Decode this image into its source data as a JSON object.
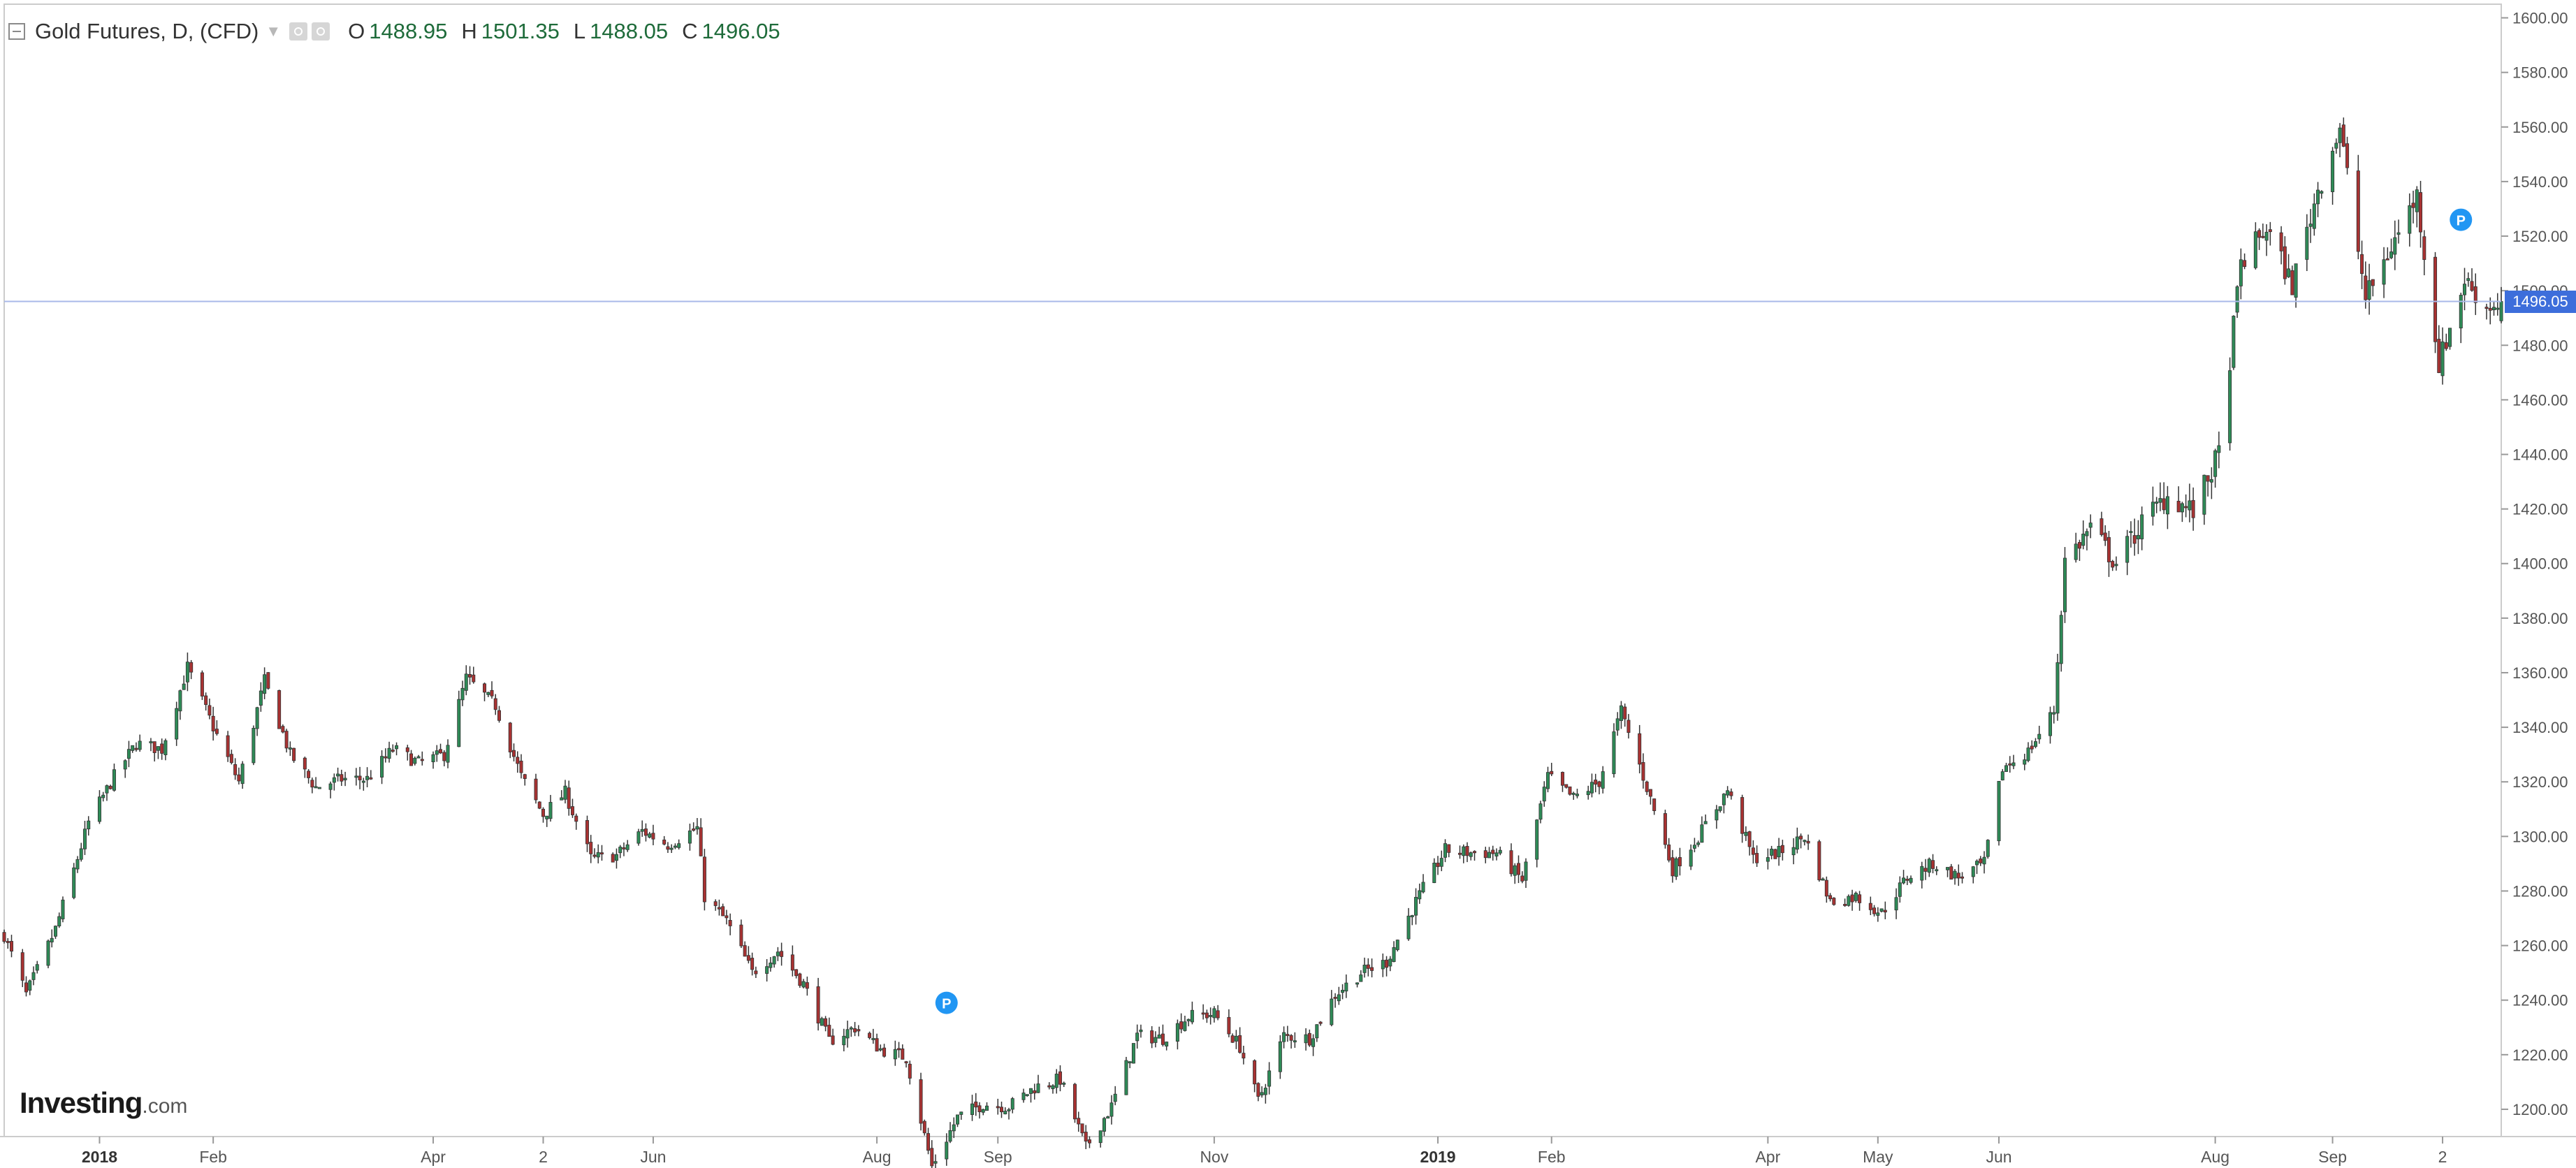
{
  "header": {
    "title": "Gold Futures, D, (CFD)",
    "ohlc": [
      {
        "key": "O",
        "value": "1488.95"
      },
      {
        "key": "H",
        "value": "1501.35"
      },
      {
        "key": "L",
        "value": "1488.05"
      },
      {
        "key": "C",
        "value": "1496.05"
      }
    ]
  },
  "branding": {
    "name": "Investing",
    "tld": ".com"
  },
  "colors": {
    "up": "#2e8b57",
    "down": "#a83232",
    "grid": "#ececec",
    "axis": "#cccccc",
    "label": "#555555",
    "current_price_line": "#a9b9e8",
    "current_price_tag": "#3d6edb",
    "marker": "#2196f3"
  },
  "chart_data": {
    "type": "candlestick",
    "instrument": "Gold Futures",
    "timeframe": "D",
    "x": {
      "type": "time",
      "range": [
        "2017-12-06",
        "2019-10-18"
      ],
      "tick_labels": [
        {
          "date": "2018-01-01",
          "label": "2018"
        },
        {
          "date": "2018-02-01",
          "label": "Feb"
        },
        {
          "date": "2018-04-02",
          "label": "Apr"
        },
        {
          "date": "2018-05-02",
          "label": "2"
        },
        {
          "date": "2018-06-01",
          "label": "Jun"
        },
        {
          "date": "2018-08-01",
          "label": "Aug"
        },
        {
          "date": "2018-09-03",
          "label": "Sep"
        },
        {
          "date": "2018-11-01",
          "label": "Nov"
        },
        {
          "date": "2019-01-01",
          "label": "2019"
        },
        {
          "date": "2019-02-01",
          "label": "Feb"
        },
        {
          "date": "2019-04-01",
          "label": "Apr"
        },
        {
          "date": "2019-05-01",
          "label": "May"
        },
        {
          "date": "2019-06-03",
          "label": "Jun"
        },
        {
          "date": "2019-08-01",
          "label": "Aug"
        },
        {
          "date": "2019-09-02",
          "label": "Sep"
        },
        {
          "date": "2019-10-02",
          "label": "2"
        }
      ]
    },
    "y": {
      "range": [
        1190,
        1605
      ],
      "ticks": [
        1200,
        1220,
        1240,
        1260,
        1280,
        1300,
        1320,
        1340,
        1360,
        1380,
        1400,
        1420,
        1440,
        1460,
        1480,
        1500,
        1520,
        1540,
        1560,
        1580,
        1600
      ],
      "tick_format": "0.00",
      "position": "right"
    },
    "grid": false,
    "close_path": [
      [
        "2017-12-06",
        1264
      ],
      [
        "2017-12-12",
        1242
      ],
      [
        "2017-12-20",
        1266
      ],
      [
        "2017-12-29",
        1305
      ],
      [
        "2018-01-05",
        1322
      ],
      [
        "2018-01-11",
        1334
      ],
      [
        "2018-01-18",
        1332
      ],
      [
        "2018-01-25",
        1362
      ],
      [
        "2018-02-02",
        1337
      ],
      [
        "2018-02-08",
        1320
      ],
      [
        "2018-02-15",
        1357
      ],
      [
        "2018-02-22",
        1330
      ],
      [
        "2018-03-01",
        1318
      ],
      [
        "2018-03-08",
        1321
      ],
      [
        "2018-03-15",
        1321
      ],
      [
        "2018-03-22",
        1332
      ],
      [
        "2018-03-29",
        1327
      ],
      [
        "2018-04-05",
        1330
      ],
      [
        "2018-04-11",
        1358
      ],
      [
        "2018-04-19",
        1348
      ],
      [
        "2018-04-26",
        1322
      ],
      [
        "2018-05-02",
        1308
      ],
      [
        "2018-05-08",
        1316
      ],
      [
        "2018-05-15",
        1292
      ],
      [
        "2018-05-22",
        1293
      ],
      [
        "2018-05-29",
        1302
      ],
      [
        "2018-06-05",
        1297
      ],
      [
        "2018-06-13",
        1303
      ],
      [
        "2018-06-15",
        1278
      ],
      [
        "2018-06-21",
        1269
      ],
      [
        "2018-06-28",
        1250
      ],
      [
        "2018-07-05",
        1258
      ],
      [
        "2018-07-12",
        1246
      ],
      [
        "2018-07-19",
        1225
      ],
      [
        "2018-07-26",
        1230
      ],
      [
        "2018-08-02",
        1222
      ],
      [
        "2018-08-09",
        1219
      ],
      [
        "2018-08-16",
        1179
      ],
      [
        "2018-08-23",
        1197
      ],
      [
        "2018-08-30",
        1202
      ],
      [
        "2018-09-06",
        1201
      ],
      [
        "2018-09-13",
        1208
      ],
      [
        "2018-09-20",
        1211
      ],
      [
        "2018-09-27",
        1186
      ],
      [
        "2018-10-04",
        1201
      ],
      [
        "2018-10-11",
        1227
      ],
      [
        "2018-10-18",
        1226
      ],
      [
        "2018-10-25",
        1234
      ],
      [
        "2018-11-01",
        1235
      ],
      [
        "2018-11-08",
        1223
      ],
      [
        "2018-11-13",
        1203
      ],
      [
        "2018-11-20",
        1227
      ],
      [
        "2018-11-27",
        1226
      ],
      [
        "2018-12-04",
        1242
      ],
      [
        "2018-12-11",
        1250
      ],
      [
        "2018-12-18",
        1254
      ],
      [
        "2018-12-26",
        1276
      ],
      [
        "2019-01-03",
        1295
      ],
      [
        "2019-01-10",
        1294
      ],
      [
        "2019-01-17",
        1294
      ],
      [
        "2019-01-24",
        1284
      ],
      [
        "2019-01-31",
        1322
      ],
      [
        "2019-02-07",
        1314
      ],
      [
        "2019-02-14",
        1320
      ],
      [
        "2019-02-20",
        1346
      ],
      [
        "2019-02-27",
        1318
      ],
      [
        "2019-03-06",
        1288
      ],
      [
        "2019-03-13",
        1300
      ],
      [
        "2019-03-21",
        1317
      ],
      [
        "2019-03-28",
        1292
      ],
      [
        "2019-04-04",
        1294
      ],
      [
        "2019-04-11",
        1300
      ],
      [
        "2019-04-18",
        1276
      ],
      [
        "2019-04-25",
        1278
      ],
      [
        "2019-05-02",
        1272
      ],
      [
        "2019-05-09",
        1285
      ],
      [
        "2019-05-16",
        1290
      ],
      [
        "2019-05-23",
        1285
      ],
      [
        "2019-05-30",
        1290
      ],
      [
        "2019-06-04",
        1325
      ],
      [
        "2019-06-11",
        1331
      ],
      [
        "2019-06-18",
        1346
      ],
      [
        "2019-06-21",
        1401
      ],
      [
        "2019-06-28",
        1413
      ],
      [
        "2019-07-05",
        1400
      ],
      [
        "2019-07-12",
        1415
      ],
      [
        "2019-07-19",
        1425
      ],
      [
        "2019-07-26",
        1419
      ],
      [
        "2019-08-02",
        1440
      ],
      [
        "2019-08-08",
        1510
      ],
      [
        "2019-08-15",
        1523
      ],
      [
        "2019-08-22",
        1502
      ],
      [
        "2019-08-29",
        1537
      ],
      [
        "2019-09-04",
        1560
      ],
      [
        "2019-09-11",
        1497
      ],
      [
        "2019-09-18",
        1516
      ],
      [
        "2019-09-25",
        1535
      ],
      [
        "2019-10-01",
        1473
      ],
      [
        "2019-10-08",
        1504
      ],
      [
        "2019-10-14",
        1494
      ],
      [
        "2019-10-18",
        1496
      ]
    ],
    "last_candle": {
      "date": "2019-10-18",
      "open": 1488.95,
      "high": 1501.35,
      "low": 1488.05,
      "close": 1496.05
    },
    "current_price": 1496.05,
    "current_price_label": "1496.05",
    "markers": [
      {
        "date": "2018-08-20",
        "price": 1239,
        "label": "P"
      },
      {
        "date": "2019-10-07",
        "price": 1526,
        "label": "P"
      }
    ]
  }
}
